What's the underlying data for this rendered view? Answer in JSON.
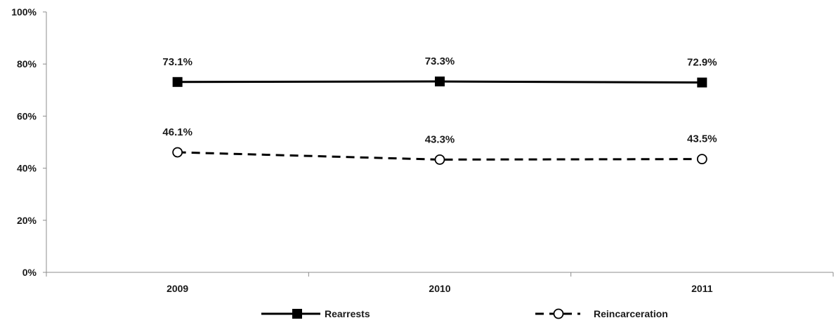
{
  "chart_data": {
    "type": "line",
    "categories": [
      "2009",
      "2010",
      "2011"
    ],
    "ylim": [
      0,
      100
    ],
    "yticks": [
      0,
      20,
      40,
      60,
      80,
      100
    ],
    "ytick_labels": [
      "0%",
      "20%",
      "40%",
      "60%",
      "80%",
      "100%"
    ],
    "grid": false,
    "legend_position": "bottom",
    "series": [
      {
        "name": "Rearrests",
        "values": [
          73.1,
          73.3,
          72.9
        ],
        "labels": [
          "73.1%",
          "73.3%",
          "72.9%"
        ],
        "line_style": "solid",
        "marker": "filled-square",
        "color": "#000000"
      },
      {
        "name": "Reincarceration",
        "values": [
          46.1,
          43.3,
          43.5
        ],
        "labels": [
          "46.1%",
          "43.3%",
          "43.5%"
        ],
        "line_style": "dashed",
        "marker": "open-circle",
        "color": "#000000"
      }
    ]
  }
}
